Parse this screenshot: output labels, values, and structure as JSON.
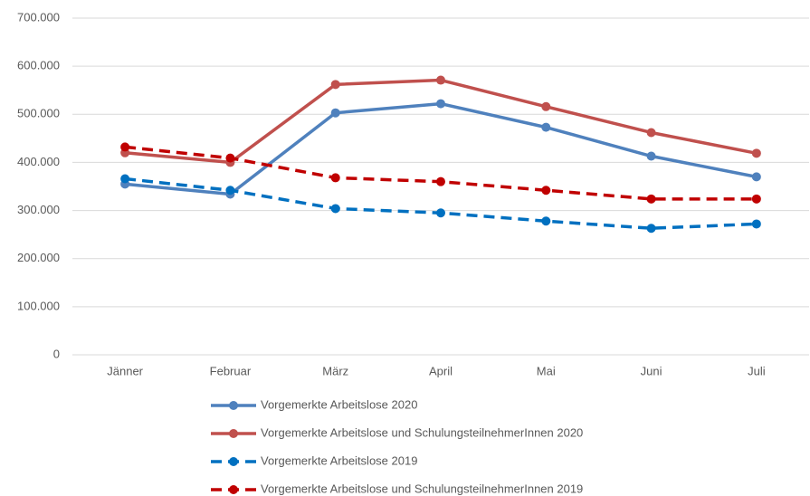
{
  "chart_data": {
    "type": "line",
    "categories": [
      "Jänner",
      "Februar",
      "März",
      "April",
      "Mai",
      "Juni",
      "Juli"
    ],
    "series": [
      {
        "name": "Vorgemerkte Arbeitslose 2020",
        "color": "#4f81bd",
        "dashed": false,
        "values": [
          355000,
          334000,
          503000,
          522000,
          473000,
          413000,
          370000
        ]
      },
      {
        "name": "Vorgemerkte Arbeitslose und SchulungsteilnehmerInnen 2020",
        "color": "#c0504d",
        "dashed": false,
        "values": [
          420000,
          400000,
          562000,
          571000,
          516000,
          462000,
          419000
        ]
      },
      {
        "name": "Vorgemerkte Arbeitslose 2019",
        "color": "#0070c0",
        "dashed": true,
        "values": [
          366000,
          342000,
          304000,
          295000,
          278000,
          263000,
          272000
        ]
      },
      {
        "name": "Vorgemerkte Arbeitslose und SchulungsteilnehmerInnen 2019",
        "color": "#c00000",
        "dashed": true,
        "values": [
          432000,
          409000,
          368000,
          360000,
          342000,
          324000,
          324000
        ]
      }
    ],
    "ylim": [
      0,
      700000
    ],
    "yticks": [
      0,
      {
        "value": 100000,
        "label": "100.000"
      },
      {
        "value": 200000,
        "label": "200.000"
      },
      {
        "value": 300000,
        "label": "300.000"
      },
      {
        "value": 400000,
        "label": "400.000"
      },
      {
        "value": 500000,
        "label": "500.000"
      },
      {
        "value": 600000,
        "label": "600.000"
      },
      {
        "value": 700000,
        "label": "700.000"
      }
    ],
    "grid": true
  }
}
